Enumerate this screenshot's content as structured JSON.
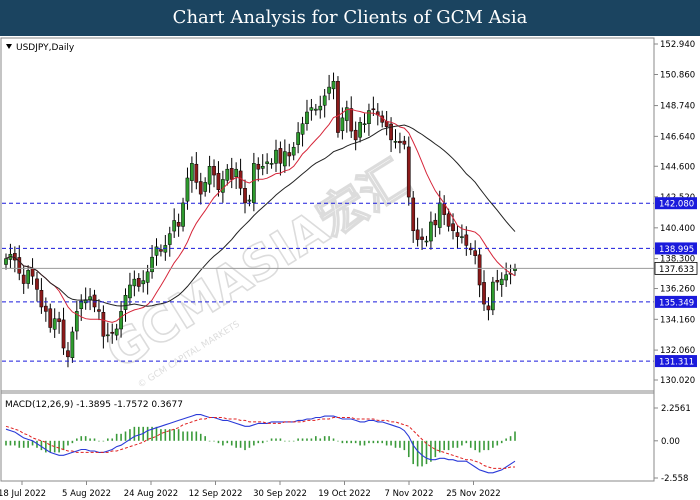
{
  "header": {
    "title": "Chart Analysis for Clients of GCM Asia"
  },
  "watermark": {
    "brand": "GCMASIA宏汇",
    "sub": "© GCM CAPITAL MARKETS"
  },
  "chart_data": {
    "type": "candlestick",
    "symbol_label": "USDJPY,Daily",
    "price_axis": {
      "min": 130.02,
      "max": 152.94,
      "ticks": [
        "152.940",
        "150.860",
        "148.740",
        "146.640",
        "144.600",
        "142.520",
        "140.400",
        "138.300",
        "136.260",
        "134.160",
        "132.060",
        "130.020"
      ]
    },
    "levels": [
      {
        "value": 142.08,
        "label": "142.080",
        "color": "#1a1adc"
      },
      {
        "value": 138.995,
        "label": "138.995",
        "color": "#1a1adc"
      },
      {
        "value": 135.349,
        "label": "135.349",
        "color": "#1a1adc"
      },
      {
        "value": 131.311,
        "label": "131.311",
        "color": "#1a1adc"
      }
    ],
    "current_price": {
      "value": 137.633,
      "label": "137.633"
    },
    "dates": [
      "18 Jul 2022",
      "5 Aug 2022",
      "24 Aug 2022",
      "12 Sep 2022",
      "30 Sep 2022",
      "19 Oct 2022",
      "7 Nov 2022",
      "25 Nov 2022"
    ],
    "closes": [
      138.3,
      138.6,
      138.2,
      137.3,
      136.6,
      137.5,
      137.1,
      136.2,
      135.0,
      134.7,
      133.6,
      134.2,
      134.0,
      132.2,
      131.6,
      133.3,
      134.7,
      135.4,
      135.5,
      135.7,
      135.0,
      134.7,
      133.0,
      133.1,
      133.2,
      133.5,
      134.7,
      135.8,
      136.5,
      136.9,
      136.4,
      136.8,
      137.4,
      138.4,
      139.1,
      138.8,
      139.2,
      140.0,
      140.9,
      140.5,
      142.1,
      143.8,
      144.8,
      143.5,
      142.7,
      143.5,
      144.6,
      144.0,
      143.0,
      143.7,
      144.4,
      143.7,
      144.4,
      143.1,
      142.1,
      142.3,
      144.8,
      144.4,
      144.6,
      144.9,
      144.8,
      145.7,
      144.8,
      145.6,
      145.3,
      145.9,
      146.9,
      147.5,
      148.3,
      148.6,
      148.5,
      148.7,
      149.4,
      150.0,
      150.4,
      146.9,
      147.9,
      148.6,
      147.0,
      146.4,
      147.6,
      147.5,
      148.4,
      148.5,
      148.1,
      147.6,
      147.3,
      146.4,
      146.3,
      146.2,
      146.1,
      142.5,
      140.2,
      139.6,
      139.6,
      139.5,
      140.8,
      140.6,
      142.1,
      141.3,
      140.5,
      140.2,
      139.8,
      139.8,
      139.2,
      138.9,
      138.5,
      136.5,
      135.2,
      134.8,
      136.7,
      136.7,
      136.9,
      137.2,
      137.3,
      137.6
    ],
    "legend": {
      "macd": "MACD(12,26,9)",
      "values": "-1.3895 -1.7572 0.3677"
    },
    "macd_axis": {
      "min": -2.558,
      "max": 2.2561,
      "ticks": [
        "2.2561",
        "0.00",
        "-2.558"
      ]
    },
    "macd_line": [
      0.8,
      0.7,
      0.6,
      0.4,
      0.2,
      0.1,
      0.0,
      -0.2,
      -0.4,
      -0.6,
      -0.8,
      -0.9,
      -1.0,
      -1.0,
      -0.9,
      -0.8,
      -0.7,
      -0.6,
      -0.6,
      -0.7,
      -0.7,
      -0.8,
      -0.8,
      -0.7,
      -0.6,
      -0.4,
      -0.3,
      -0.1,
      0.1,
      0.3,
      0.4,
      0.5,
      0.7,
      0.8,
      0.9,
      1.0,
      1.1,
      1.2,
      1.3,
      1.4,
      1.5,
      1.6,
      1.7,
      1.8,
      1.8,
      1.7,
      1.6,
      1.6,
      1.5,
      1.4,
      1.4,
      1.3,
      1.2,
      1.1,
      1.0,
      1.0,
      1.1,
      1.2,
      1.2,
      1.2,
      1.3,
      1.3,
      1.3,
      1.3,
      1.3,
      1.3,
      1.4,
      1.4,
      1.5,
      1.5,
      1.6,
      1.6,
      1.7,
      1.7,
      1.7,
      1.6,
      1.5,
      1.5,
      1.5,
      1.4,
      1.3,
      1.3,
      1.4,
      1.4,
      1.3,
      1.3,
      1.2,
      1.1,
      1.0,
      0.9,
      0.7,
      0.3,
      -0.3,
      -0.7,
      -1.0,
      -1.2,
      -1.3,
      -1.3,
      -1.2,
      -1.2,
      -1.3,
      -1.3,
      -1.4,
      -1.4,
      -1.4,
      -1.6,
      -1.8,
      -2.0,
      -2.1,
      -2.2,
      -2.2,
      -2.1,
      -2.0,
      -1.8,
      -1.6,
      -1.4
    ],
    "signal_line": [
      1.0,
      0.9,
      0.8,
      0.7,
      0.5,
      0.4,
      0.2,
      0.1,
      0.0,
      -0.1,
      -0.3,
      -0.4,
      -0.5,
      -0.6,
      -0.7,
      -0.7,
      -0.8,
      -0.8,
      -0.8,
      -0.8,
      -0.8,
      -0.8,
      -0.8,
      -0.8,
      -0.7,
      -0.7,
      -0.6,
      -0.5,
      -0.4,
      -0.3,
      -0.2,
      -0.1,
      0.1,
      0.2,
      0.3,
      0.5,
      0.6,
      0.7,
      0.8,
      0.9,
      1.1,
      1.2,
      1.3,
      1.4,
      1.5,
      1.5,
      1.6,
      1.6,
      1.6,
      1.6,
      1.5,
      1.5,
      1.5,
      1.4,
      1.4,
      1.3,
      1.3,
      1.3,
      1.3,
      1.2,
      1.2,
      1.2,
      1.2,
      1.3,
      1.3,
      1.3,
      1.3,
      1.3,
      1.4,
      1.4,
      1.4,
      1.5,
      1.5,
      1.5,
      1.6,
      1.6,
      1.6,
      1.6,
      1.6,
      1.5,
      1.5,
      1.5,
      1.5,
      1.5,
      1.4,
      1.4,
      1.4,
      1.3,
      1.3,
      1.2,
      1.1,
      1.0,
      0.7,
      0.4,
      0.1,
      -0.2,
      -0.4,
      -0.6,
      -0.7,
      -0.8,
      -0.9,
      -1.0,
      -1.1,
      -1.2,
      -1.3,
      -1.3,
      -1.4,
      -1.5,
      -1.7,
      -1.8,
      -1.9,
      -1.9,
      -1.9,
      -1.9,
      -1.8,
      -1.8
    ]
  }
}
